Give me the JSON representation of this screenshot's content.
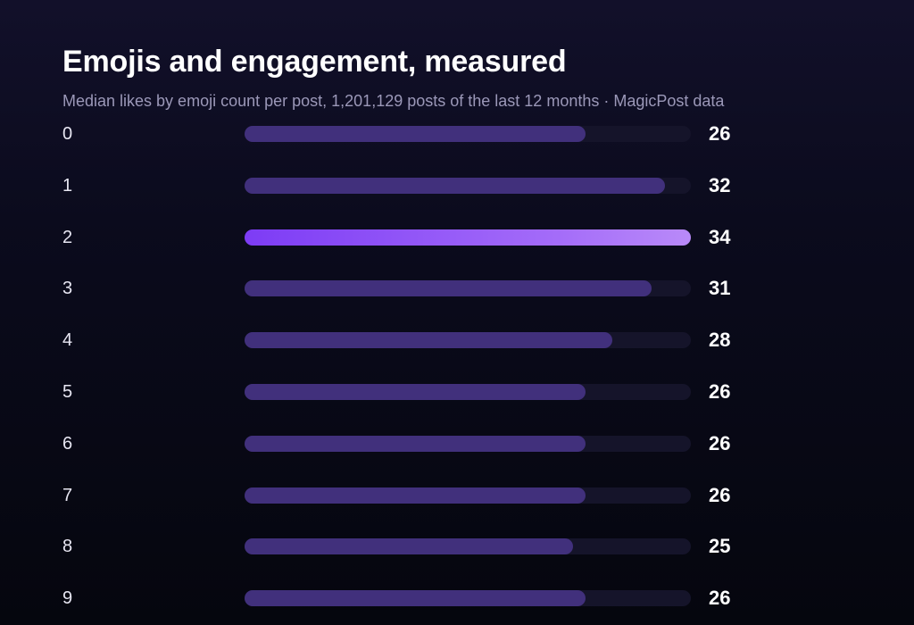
{
  "chart_data": {
    "type": "bar",
    "orientation": "horizontal",
    "title": "Emojis and engagement, measured",
    "subtitle": "Median likes by emoji count per post, 1,201,129 posts of the last 12 months · MagicPost data",
    "categories": [
      "0",
      "1",
      "2",
      "3",
      "4",
      "5",
      "6",
      "7",
      "8",
      "9"
    ],
    "values": [
      26,
      32,
      34,
      31,
      28,
      26,
      26,
      26,
      25,
      26
    ],
    "highlight_index": 2,
    "xlim": [
      0,
      34
    ],
    "grid": false,
    "legend": "none"
  },
  "colors": {
    "bar": "#41307c",
    "bar_highlight_start": "#7d3cf5",
    "bar_highlight_end": "#b98af9",
    "track": "#15142a",
    "background_top": "#12102a",
    "background_bottom": "#05060e"
  }
}
